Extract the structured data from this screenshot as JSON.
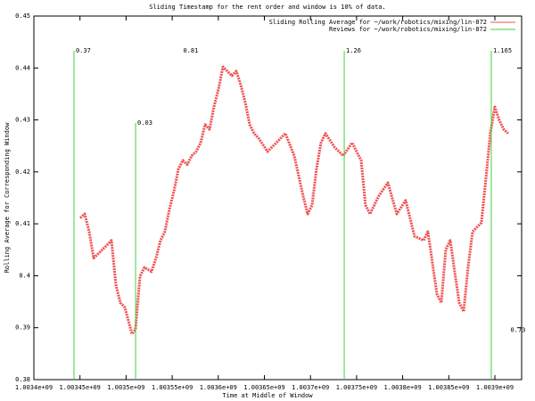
{
  "chart_data": {
    "type": "line",
    "title": "Sliding Timestamp for the rent order and window is 10% of data.",
    "xlabel": "Time at Middle of Window",
    "ylabel": "Rolling Average for Corresponding Window",
    "xlim": [
      1003400000,
      1003929000
    ],
    "xticks": [
      {
        "value": 1003400000,
        "label": "1.0034e+09"
      },
      {
        "value": 1003450000,
        "label": "1.00345e+09"
      },
      {
        "value": 1003500000,
        "label": "1.0035e+09"
      },
      {
        "value": 1003550000,
        "label": "1.00355e+09"
      },
      {
        "value": 1003600000,
        "label": "1.0036e+09"
      },
      {
        "value": 1003650000,
        "label": "1.00365e+09"
      },
      {
        "value": 1003700000,
        "label": "1.0037e+09"
      },
      {
        "value": 1003750000,
        "label": "1.00375e+09"
      },
      {
        "value": 1003800000,
        "label": "1.0038e+09"
      },
      {
        "value": 1003850000,
        "label": "1.00385e+09"
      },
      {
        "value": 1003900000,
        "label": "1.0039e+09"
      }
    ],
    "ylim": [
      0.38,
      0.45
    ],
    "yticks": [
      0.38,
      0.39,
      0.4,
      0.41,
      0.42,
      0.43,
      0.44,
      0.45
    ],
    "grid": false,
    "legend": "upper right",
    "series": [
      {
        "name": "Sliding Rolling Average for ~/work/robotics/mixing/lin-872",
        "color": "#f05050",
        "x": [
          1003450300,
          1003455100,
          1003460000,
          1003464800,
          1003469600,
          1003479300,
          1003484100,
          1003489000,
          1003493800,
          1003498600,
          1003506400,
          1003510200,
          1003515100,
          1003519900,
          1003527600,
          1003532500,
          1003537300,
          1003542100,
          1003547000,
          1003551800,
          1003556700,
          1003561500,
          1003566300,
          1003571200,
          1003576000,
          1003580800,
          1003585700,
          1003590500,
          1003595300,
          1003600200,
          1003605000,
          1003609800,
          1003614700,
          1003619500,
          1003624300,
          1003629200,
          1003634000,
          1003638800,
          1003643700,
          1003653400,
          1003663000,
          1003672700,
          1003682400,
          1003692000,
          1003696900,
          1003701700,
          1003706500,
          1003711400,
          1003716200,
          1003725900,
          1003735500,
          1003745200,
          1003754900,
          1003759700,
          1003764600,
          1003774200,
          1003783900,
          1003793600,
          1003803200,
          1003812900,
          1003822600,
          1003827400,
          1003837100,
          1003841900,
          1003846800,
          1003851600,
          1003856400,
          1003861300,
          1003866100,
          1003870900,
          1003875800,
          1003885400,
          1003890300,
          1003895100,
          1003899900,
          1003904800,
          1003909600,
          1003914400
        ],
        "values": [
          0.4111,
          0.4119,
          0.4085,
          0.4034,
          0.4042,
          0.4059,
          0.4068,
          0.3982,
          0.3948,
          0.3939,
          0.3888,
          0.3896,
          0.3999,
          0.4016,
          0.4008,
          0.4034,
          0.4068,
          0.4085,
          0.4128,
          0.4162,
          0.4205,
          0.4222,
          0.4214,
          0.4231,
          0.4239,
          0.4256,
          0.4291,
          0.4282,
          0.4325,
          0.4359,
          0.4402,
          0.4394,
          0.4385,
          0.4394,
          0.4368,
          0.4334,
          0.4291,
          0.4274,
          0.4265,
          0.4239,
          0.4256,
          0.4274,
          0.4231,
          0.4154,
          0.4119,
          0.4136,
          0.4205,
          0.4256,
          0.4274,
          0.4248,
          0.4231,
          0.4256,
          0.4222,
          0.4136,
          0.4119,
          0.4154,
          0.4179,
          0.4119,
          0.4145,
          0.4076,
          0.4068,
          0.4085,
          0.3965,
          0.3948,
          0.4051,
          0.4068,
          0.4008,
          0.3948,
          0.3931,
          0.4016,
          0.4085,
          0.4102,
          0.4188,
          0.4274,
          0.4325,
          0.4299,
          0.4282,
          0.4274
        ]
      },
      {
        "name": "Reviews for ~/work/robotics/mixing/lin-872",
        "color": "#40d040",
        "impulses": true,
        "x": [
          1003443500,
          1003510300,
          1003736600,
          1003896100
        ],
        "values": [
          0.4433,
          0.4294,
          0.4433,
          0.4433
        ],
        "labels": [
          "0.37",
          "0.03",
          "1.26",
          "1.165"
        ]
      }
    ],
    "annotations": [
      {
        "text": "0.81",
        "x": 1003560000,
        "y": 0.4433
      },
      {
        "text": "0.73",
        "x": 1003915000,
        "y": 0.3895
      }
    ]
  }
}
